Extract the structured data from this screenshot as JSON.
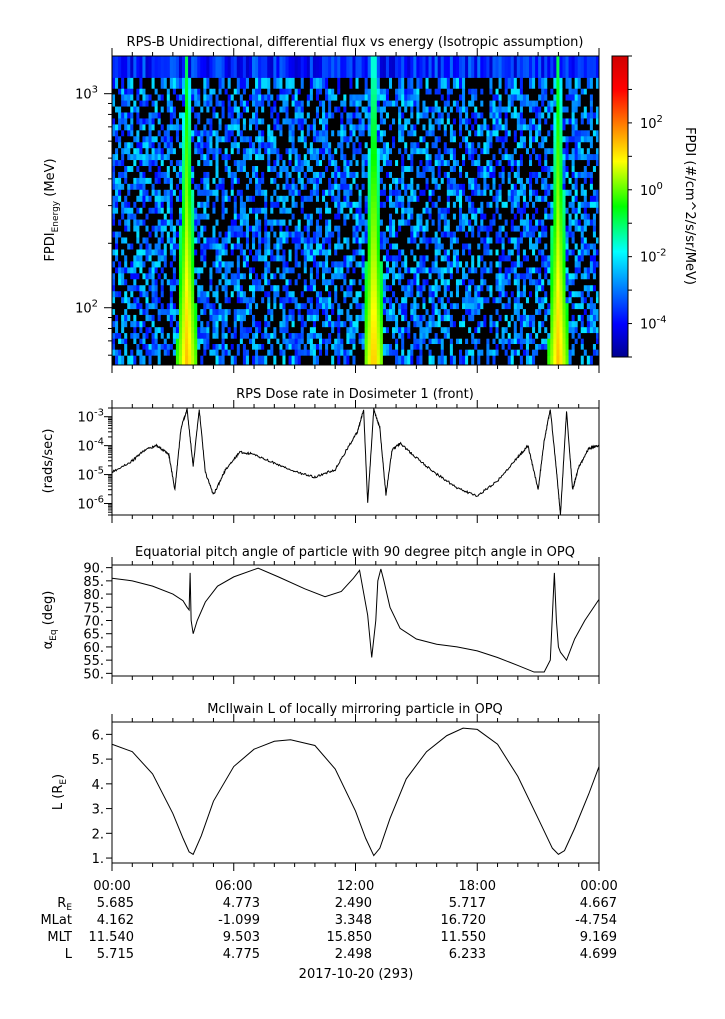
{
  "chart_data": [
    {
      "type": "heatmap",
      "title": "RPS-B  Unidirectional, differential flux vs energy (Isotropic assumption)",
      "ylabel": "FPDI",
      "ylabel_sub": "Energy",
      "ylabel_unit": "(MeV)",
      "yscale": "log",
      "ylim": [
        54,
        1500
      ],
      "y_ticks": [
        {
          "value": 100,
          "label": "10",
          "exp": "2"
        },
        {
          "value": 1000,
          "label": "10",
          "exp": "3"
        }
      ],
      "colorbar": {
        "label": "FPDI (#/cm^2/s/sr/MeV)",
        "scale": "log",
        "range": [
          1e-05,
          10000.0
        ],
        "ticks": [
          {
            "value": 0.0001,
            "label": "10",
            "exp": "-4"
          },
          {
            "value": 0.01,
            "label": "10",
            "exp": "-2"
          },
          {
            "value": 1,
            "label": "10",
            "exp": "0"
          },
          {
            "value": 100,
            "label": "10",
            "exp": "2"
          }
        ]
      },
      "energy_channels_mev": [
        58,
        62,
        66,
        70,
        74,
        79,
        84,
        90,
        96,
        102,
        109,
        116,
        124,
        132,
        141,
        150,
        160,
        171,
        182,
        194,
        207,
        221,
        235,
        251,
        268,
        285,
        304,
        324,
        346,
        369,
        393,
        419,
        447,
        476,
        508,
        541,
        577,
        615,
        656,
        699,
        745,
        795,
        847,
        903,
        963,
        1030,
        1090,
        1300
      ],
      "radiation_belt_peaks_hours": [
        3.7,
        12.9,
        22.0
      ],
      "peak_flux_low_energy": 30,
      "peak_flux_high_energy": 0.3,
      "background_flux_range": [
        0.0001,
        0.01
      ]
    },
    {
      "type": "line",
      "title": "RPS  Dose rate in Dosimeter 1 (front)",
      "ylabel": "(rads/sec)",
      "yscale": "log",
      "ylim": [
        4e-07,
        0.002
      ],
      "y_ticks": [
        {
          "value": 1e-06,
          "label": "10",
          "exp": "-6"
        },
        {
          "value": 1e-05,
          "label": "10",
          "exp": "-5"
        },
        {
          "value": 0.0001,
          "label": "10",
          "exp": "-4"
        },
        {
          "value": 0.001,
          "label": "10",
          "exp": "-3"
        }
      ],
      "x_hours": [
        0,
        1,
        1.6,
        2.2,
        2.8,
        3.1,
        3.4,
        3.7,
        4.0,
        4.3,
        4.6,
        5.0,
        5.6,
        6.3,
        7,
        8,
        9,
        10,
        11,
        11.6,
        12.1,
        12.4,
        12.6,
        12.9,
        13.2,
        13.5,
        13.8,
        14.2,
        14.8,
        15.8,
        17,
        18,
        19,
        20,
        20.5,
        21,
        21.3,
        21.6,
        21.9,
        22.1,
        22.4,
        22.7,
        23,
        23.5,
        24
      ],
      "values": [
        1.2e-05,
        3e-05,
        7e-05,
        0.0001,
        5e-05,
        3e-06,
        0.0004,
        0.0018,
        2e-05,
        0.0018,
        1.2e-05,
        2e-06,
        1.5e-05,
        6e-05,
        5e-05,
        2.5e-05,
        1.3e-05,
        8e-06,
        1.5e-05,
        8e-05,
        0.0003,
        0.0018,
        1e-06,
        0.0018,
        0.0004,
        2e-06,
        7e-05,
        0.00012,
        5e-05,
        1.3e-05,
        3.5e-06,
        1.8e-06,
        6e-06,
        4e-05,
        0.0001,
        3e-06,
        0.00015,
        0.0018,
        1.5e-05,
        4e-07,
        0.0015,
        3e-06,
        1.8e-05,
        8e-05,
        0.0001
      ]
    },
    {
      "type": "line",
      "title": "Equatorial pitch angle of particle with 90 degree pitch angle in OPQ",
      "ylabel": "α",
      "ylabel_sub": "Eq",
      "ylabel_unit": "(deg)",
      "ylim": [
        49,
        91
      ],
      "y_ticks": [
        50,
        55,
        60,
        65,
        70,
        75,
        80,
        85,
        90
      ],
      "x_hours": [
        0,
        1,
        2,
        3,
        3.5,
        3.7,
        3.8,
        3.85,
        3.9,
        4.0,
        4.2,
        4.6,
        5.2,
        6,
        7.2,
        8.2,
        9.5,
        10.5,
        11.3,
        11.9,
        12.2,
        12.6,
        12.8,
        13.0,
        13.1,
        13.25,
        13.4,
        13.7,
        14.2,
        15,
        16,
        17,
        18,
        19,
        20,
        20.8,
        21.3,
        21.6,
        21.8,
        21.9,
        22.0,
        22.1,
        22.4,
        22.8,
        23.3,
        24
      ],
      "values": [
        86,
        85,
        83,
        80,
        77.5,
        75,
        74,
        88,
        70,
        65,
        70,
        77,
        83,
        86.5,
        89.8,
        86.5,
        82,
        79,
        81,
        86,
        89,
        72,
        56,
        70,
        85,
        89.5,
        85,
        75,
        67,
        63,
        61,
        60,
        58.5,
        56,
        53,
        50.5,
        50.5,
        55,
        88,
        70,
        60,
        58,
        55,
        63,
        70,
        78
      ]
    },
    {
      "type": "line",
      "title": "McIlwain L of locally mirroring particle in OPQ",
      "ylabel": "L (R",
      "ylabel_sub": "E",
      "ylabel_close": ")",
      "ylim": [
        0.8,
        6.5
      ],
      "y_ticks": [
        1,
        2,
        3,
        4,
        5,
        6
      ],
      "x_hours": [
        0,
        1,
        2,
        3,
        3.5,
        3.8,
        4.0,
        4.4,
        5,
        6,
        7,
        8,
        8.8,
        10,
        11,
        12,
        12.5,
        12.9,
        13.2,
        13.7,
        14.5,
        15.5,
        16.5,
        17.3,
        18,
        19,
        20,
        21,
        21.7,
        22.0,
        22.3,
        22.8,
        23.5,
        24
      ],
      "values": [
        5.6,
        5.3,
        4.4,
        2.8,
        1.8,
        1.25,
        1.15,
        1.9,
        3.3,
        4.7,
        5.4,
        5.72,
        5.78,
        5.55,
        4.6,
        2.9,
        1.8,
        1.1,
        1.4,
        2.6,
        4.2,
        5.3,
        5.95,
        6.25,
        6.2,
        5.6,
        4.3,
        2.6,
        1.4,
        1.15,
        1.3,
        2.2,
        3.6,
        4.7
      ]
    }
  ],
  "time_axis": {
    "xlim_hours": [
      0,
      24
    ],
    "tick_labels": [
      "00:00",
      "06:00",
      "12:00",
      "18:00",
      "00:00"
    ],
    "date_label": "2017-10-20 (293)"
  },
  "ephemeris": {
    "rows": [
      {
        "label": "R",
        "label_sub": "E",
        "values": [
          "5.685",
          "4.773",
          "2.490",
          "5.717",
          "4.667"
        ]
      },
      {
        "label": "MLat",
        "label_sub": "",
        "values": [
          "4.162",
          "-1.099",
          "3.348",
          "16.720",
          "-4.754"
        ]
      },
      {
        "label": "MLT",
        "label_sub": "",
        "values": [
          "11.540",
          "9.503",
          "15.850",
          "11.550",
          "9.169"
        ]
      },
      {
        "label": "L",
        "label_sub": "",
        "values": [
          "5.715",
          "4.775",
          "2.498",
          "6.233",
          "4.699"
        ]
      }
    ]
  }
}
